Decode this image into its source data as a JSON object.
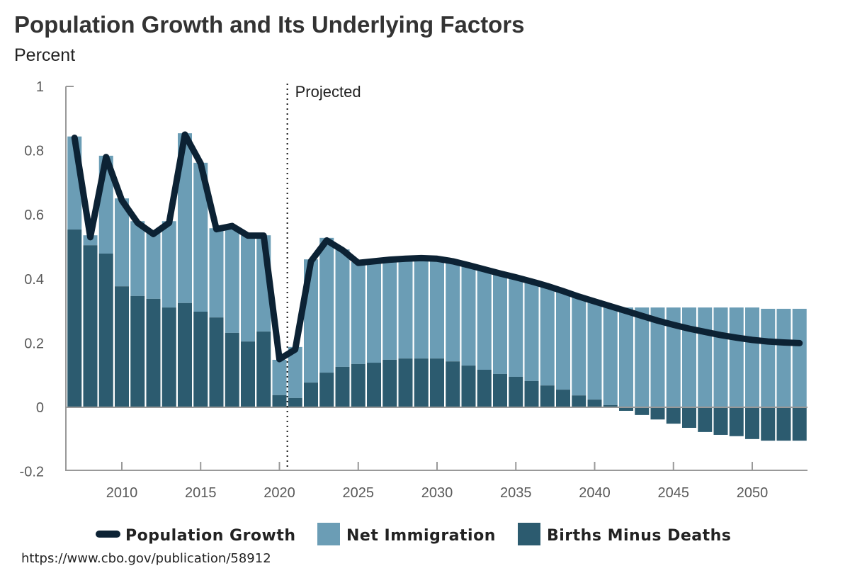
{
  "chart_data": {
    "type": "bar",
    "title": "Population Growth and Its Underlying Factors",
    "ylabel": "Percent",
    "xlabel": "",
    "ylim": [
      -0.2,
      1
    ],
    "yticks": [
      1,
      0.8,
      0.6,
      0.4,
      0.2,
      0,
      -0.2
    ],
    "ytick_labels": [
      "1",
      "0.8",
      "0.6",
      "0.4",
      "0.2",
      "0",
      "-0.2"
    ],
    "xticks": [
      2010,
      2015,
      2020,
      2025,
      2030,
      2035,
      2040,
      2045,
      2050
    ],
    "xtick_labels": [
      "2010",
      "2015",
      "2020",
      "2025",
      "2030",
      "2035",
      "2040",
      "2045",
      "2050"
    ],
    "annotation": {
      "text": "Projected",
      "x": 2020.5
    },
    "legend_position": "bottom",
    "years": [
      2007,
      2008,
      2009,
      2010,
      2011,
      2012,
      2013,
      2014,
      2015,
      2016,
      2017,
      2018,
      2019,
      2020,
      2021,
      2022,
      2023,
      2024,
      2025,
      2026,
      2027,
      2028,
      2029,
      2030,
      2031,
      2032,
      2033,
      2034,
      2035,
      2036,
      2037,
      2038,
      2039,
      2040,
      2041,
      2042,
      2043,
      2044,
      2045,
      2046,
      2047,
      2048,
      2049,
      2050,
      2051,
      2052,
      2053
    ],
    "series": [
      {
        "name": "Births Minus Deaths",
        "kind": "bar",
        "color": "#2c5b6f",
        "values": [
          0.554,
          0.505,
          0.479,
          0.377,
          0.347,
          0.338,
          0.311,
          0.325,
          0.298,
          0.28,
          0.232,
          0.205,
          0.236,
          0.038,
          0.029,
          0.077,
          0.108,
          0.126,
          0.135,
          0.139,
          0.148,
          0.152,
          0.152,
          0.152,
          0.143,
          0.13,
          0.117,
          0.104,
          0.095,
          0.082,
          0.068,
          0.055,
          0.037,
          0.024,
          0.007,
          -0.011,
          -0.024,
          -0.038,
          -0.051,
          -0.064,
          -0.077,
          -0.086,
          -0.09,
          -0.099,
          -0.104,
          -0.104,
          -0.104
        ]
      },
      {
        "name": "Net Immigration",
        "kind": "bar",
        "color": "#6b9db5",
        "values": [
          0.29,
          0.031,
          0.305,
          0.274,
          0.233,
          0.205,
          0.269,
          0.529,
          0.464,
          0.278,
          0.324,
          0.331,
          0.3,
          0.11,
          0.159,
          0.384,
          0.42,
          0.366,
          0.318,
          0.316,
          0.312,
          0.313,
          0.314,
          0.313,
          0.312,
          0.313,
          0.313,
          0.313,
          0.31,
          0.31,
          0.31,
          0.307,
          0.31,
          0.31,
          0.31,
          0.311,
          0.311,
          0.311,
          0.311,
          0.311,
          0.311,
          0.311,
          0.311,
          0.311,
          0.307,
          0.307,
          0.307
        ]
      },
      {
        "name": "Population Growth",
        "kind": "line",
        "color": "#0c2234",
        "values": [
          0.84,
          0.53,
          0.78,
          0.645,
          0.575,
          0.54,
          0.575,
          0.85,
          0.76,
          0.555,
          0.565,
          0.535,
          0.535,
          0.15,
          0.18,
          0.455,
          0.52,
          0.49,
          0.45,
          0.455,
          0.46,
          0.463,
          0.465,
          0.463,
          0.455,
          0.443,
          0.43,
          0.417,
          0.405,
          0.392,
          0.378,
          0.362,
          0.345,
          0.33,
          0.315,
          0.3,
          0.285,
          0.27,
          0.257,
          0.245,
          0.235,
          0.225,
          0.217,
          0.21,
          0.205,
          0.202,
          0.2
        ]
      }
    ]
  },
  "source": "https://www.cbo.gov/publication/58912"
}
